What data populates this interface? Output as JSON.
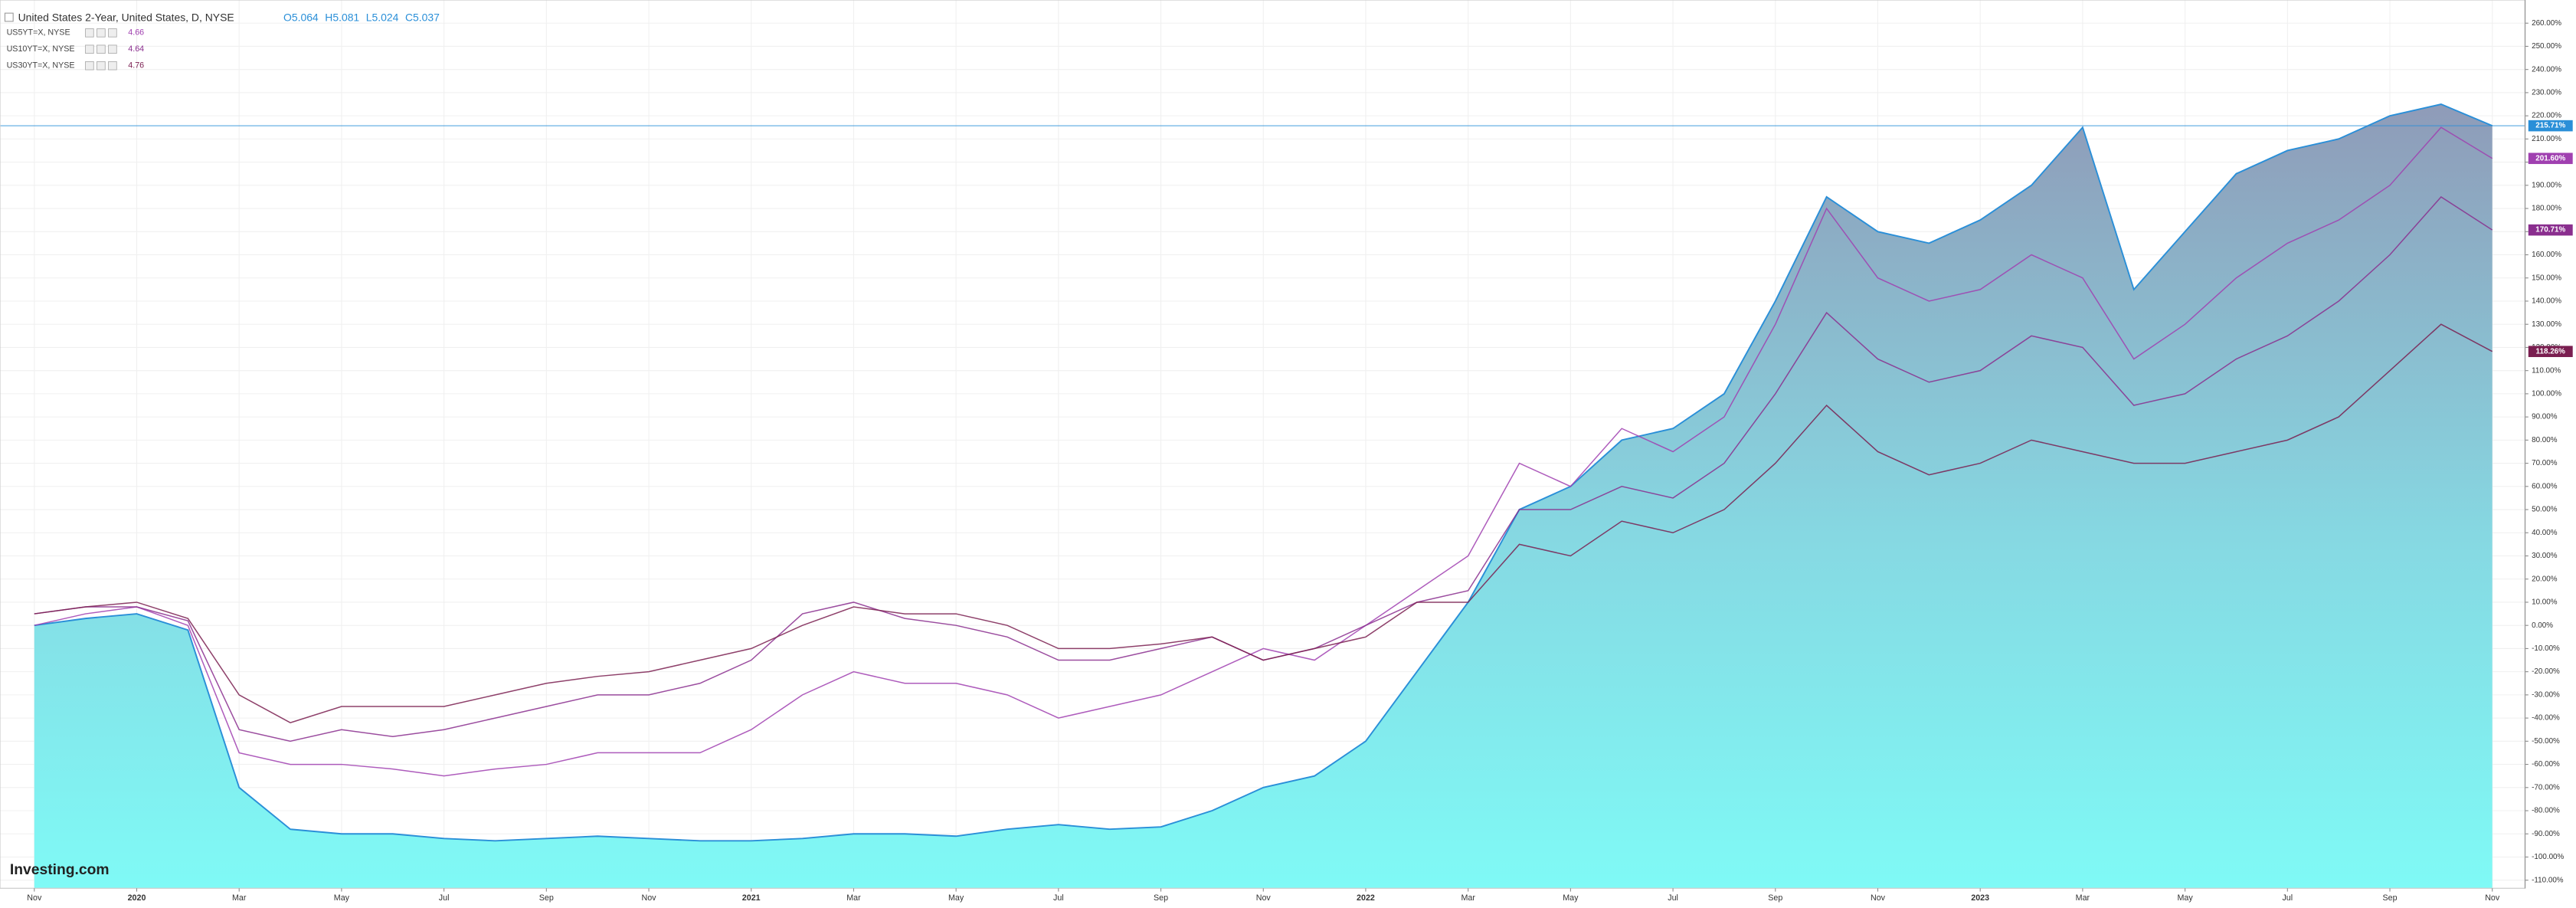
{
  "chart_data": {
    "type": "line",
    "x": [
      0,
      1,
      2,
      3,
      4,
      5,
      6,
      7,
      8,
      9,
      10,
      11,
      12,
      13,
      14,
      15,
      16,
      17,
      18,
      19,
      20,
      21,
      22,
      23,
      24,
      25,
      26,
      27,
      28,
      29,
      30,
      31,
      32,
      33,
      34,
      35,
      36,
      37,
      38,
      39,
      40,
      41,
      42,
      43,
      44,
      45,
      46,
      47,
      48
    ],
    "xlim": [
      -0.67,
      48.64
    ],
    "xticks": [
      {
        "value": 0,
        "label": "Nov"
      },
      {
        "value": 2,
        "label": "2020"
      },
      {
        "value": 4,
        "label": "Mar"
      },
      {
        "value": 6,
        "label": "May"
      },
      {
        "value": 8,
        "label": "Jul"
      },
      {
        "value": 10,
        "label": "Sep"
      },
      {
        "value": 12,
        "label": "Nov"
      },
      {
        "value": 14,
        "label": "2021"
      },
      {
        "value": 16,
        "label": "Mar"
      },
      {
        "value": 18,
        "label": "May"
      },
      {
        "value": 20,
        "label": "Jul"
      },
      {
        "value": 22,
        "label": "Sep"
      },
      {
        "value": 24,
        "label": "Nov"
      },
      {
        "value": 26,
        "label": "2022"
      },
      {
        "value": 28,
        "label": "Mar"
      },
      {
        "value": 30,
        "label": "May"
      },
      {
        "value": 32,
        "label": "Jul"
      },
      {
        "value": 34,
        "label": "Sep"
      },
      {
        "value": 36,
        "label": "Nov"
      },
      {
        "value": 38,
        "label": "2023"
      },
      {
        "value": 40,
        "label": "Mar"
      },
      {
        "value": 42,
        "label": "May"
      },
      {
        "value": 44,
        "label": "Jul"
      },
      {
        "value": 46,
        "label": "Sep"
      },
      {
        "value": 48,
        "label": "Nov"
      }
    ],
    "ylim": [
      -113.5,
      270
    ],
    "yticks": [
      {
        "value": 260,
        "label": "260.00%"
      },
      {
        "value": 250,
        "label": "250.00%"
      },
      {
        "value": 240,
        "label": "240.00%"
      },
      {
        "value": 230,
        "label": "230.00%"
      },
      {
        "value": 220,
        "label": "220.00%"
      },
      {
        "value": 210,
        "label": "210.00%"
      },
      {
        "value": 200,
        "label": "200.00%"
      },
      {
        "value": 190,
        "label": "190.00%"
      },
      {
        "value": 180,
        "label": "180.00%"
      },
      {
        "value": 170,
        "label": "170.00%"
      },
      {
        "value": 160,
        "label": "160.00%"
      },
      {
        "value": 150,
        "label": "150.00%"
      },
      {
        "value": 140,
        "label": "140.00%"
      },
      {
        "value": 130,
        "label": "130.00%"
      },
      {
        "value": 120,
        "label": "120.00%"
      },
      {
        "value": 110,
        "label": "110.00%"
      },
      {
        "value": 100,
        "label": "100.00%"
      },
      {
        "value": 90,
        "label": "90.00%"
      },
      {
        "value": 80,
        "label": "80.00%"
      },
      {
        "value": 70,
        "label": "70.00%"
      },
      {
        "value": 60,
        "label": "60.00%"
      },
      {
        "value": 50,
        "label": "50.00%"
      },
      {
        "value": 40,
        "label": "40.00%"
      },
      {
        "value": 30,
        "label": "30.00%"
      },
      {
        "value": 20,
        "label": "20.00%"
      },
      {
        "value": 10,
        "label": "10.00%"
      },
      {
        "value": 0,
        "label": "0.00%"
      },
      {
        "value": -10,
        "label": "-10.00%"
      },
      {
        "value": -20,
        "label": "-20.00%"
      },
      {
        "value": -30,
        "label": "-30.00%"
      },
      {
        "value": -40,
        "label": "-40.00%"
      },
      {
        "value": -50,
        "label": "-50.00%"
      },
      {
        "value": -60,
        "label": "-60.00%"
      },
      {
        "value": -70,
        "label": "-70.00%"
      },
      {
        "value": -80,
        "label": "-80.00%"
      },
      {
        "value": -90,
        "label": "-90.00%"
      },
      {
        "value": -100,
        "label": "-100.00%"
      },
      {
        "value": -110,
        "label": "-110.00%"
      }
    ],
    "grid": true,
    "watermark": "Investing.com",
    "series": [
      {
        "name": "United States 2-Year, United States, D, NYSE",
        "color": "#2a8fd8",
        "fill": true,
        "ohlc": [
          "O5.064",
          "H5.081",
          "L5.024",
          "C5.037"
        ],
        "last_label": "215.71%",
        "values": [
          0,
          3,
          5,
          -2,
          -70,
          -88,
          -90,
          -90,
          -92,
          -93,
          -92,
          -91,
          -92,
          -93,
          -93,
          -92,
          -90,
          -90,
          -91,
          -88,
          -86,
          -88,
          -87,
          -80,
          -70,
          -65,
          -50,
          -20,
          10,
          50,
          60,
          80,
          85,
          100,
          140,
          185,
          170,
          165,
          175,
          190,
          215,
          145,
          170,
          195,
          205,
          210,
          220,
          225,
          215.71
        ]
      },
      {
        "name": "US5YT=X, NYSE",
        "color": "#a040b0",
        "price": "4.66",
        "last_label": "201.60%",
        "values": [
          0,
          5,
          8,
          0,
          -55,
          -60,
          -60,
          -62,
          -65,
          -62,
          -60,
          -55,
          -55,
          -55,
          -45,
          -30,
          -20,
          -25,
          -25,
          -30,
          -40,
          -35,
          -30,
          -20,
          -10,
          -15,
          0,
          15,
          30,
          70,
          60,
          85,
          75,
          90,
          130,
          180,
          150,
          140,
          145,
          160,
          150,
          115,
          130,
          150,
          165,
          175,
          190,
          215,
          201.6
        ]
      },
      {
        "name": "US10YT=X, NYSE",
        "color": "#8a2e8e",
        "price": "4.64",
        "last_label": "170.71%",
        "values": [
          5,
          8,
          8,
          2,
          -45,
          -50,
          -45,
          -48,
          -45,
          -40,
          -35,
          -30,
          -30,
          -25,
          -15,
          5,
          10,
          3,
          0,
          -5,
          -15,
          -15,
          -10,
          -5,
          -15,
          -10,
          0,
          10,
          15,
          50,
          50,
          60,
          55,
          70,
          100,
          135,
          115,
          105,
          110,
          125,
          120,
          95,
          100,
          115,
          125,
          140,
          160,
          185,
          170.71
        ]
      },
      {
        "name": "US30YT=X, NYSE",
        "color": "#7a1e50",
        "price": "4.76",
        "last_label": "118.26%",
        "values": [
          5,
          8,
          10,
          3,
          -30,
          -42,
          -35,
          -35,
          -35,
          -30,
          -25,
          -22,
          -20,
          -15,
          -10,
          0,
          8,
          5,
          5,
          0,
          -10,
          -10,
          -8,
          -5,
          -15,
          -10,
          -5,
          10,
          10,
          35,
          30,
          45,
          40,
          50,
          70,
          95,
          75,
          65,
          70,
          80,
          75,
          70,
          70,
          75,
          80,
          90,
          110,
          130,
          118.26
        ]
      }
    ]
  }
}
